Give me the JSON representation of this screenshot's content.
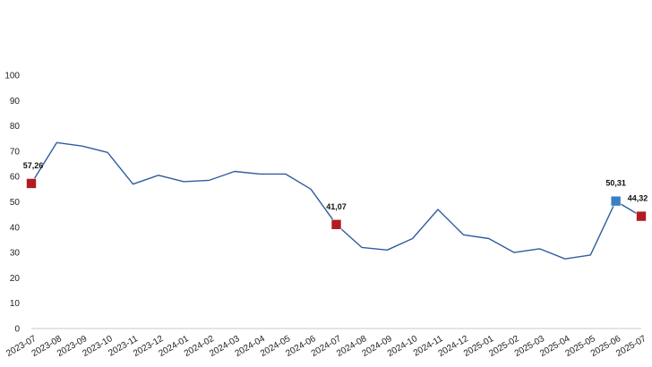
{
  "chart_data": {
    "type": "line",
    "title": "",
    "xlabel": "",
    "ylabel": "",
    "ylim": [
      0,
      100
    ],
    "yticks": [
      "0",
      "10",
      "20",
      "30",
      "40",
      "50",
      "60",
      "70",
      "80",
      "90",
      "100"
    ],
    "categories": [
      "2023-07",
      "2023-08",
      "2023-09",
      "2023-10",
      "2023-11",
      "2023-12",
      "2024-01",
      "2024-02",
      "2024-03",
      "2024-04",
      "2024-05",
      "2024-06",
      "2024-07",
      "2024-08",
      "2024-09",
      "2024-10",
      "2024-11",
      "2024-12",
      "2025-01",
      "2025-02",
      "2025-03",
      "2025-04",
      "2025-05",
      "2025-06",
      "2025-07"
    ],
    "series": [
      {
        "values": [
          57.26,
          73.4,
          72.0,
          69.5,
          57.0,
          60.5,
          58.0,
          58.5,
          62.0,
          61.0,
          61.0,
          55.0,
          41.07,
          32.0,
          31.0,
          35.5,
          47.0,
          37.0,
          35.5,
          30.0,
          31.5,
          27.5,
          29.0,
          50.31,
          44.32
        ],
        "color": "#2f5d9e"
      }
    ],
    "highlights": [
      {
        "index": 0,
        "label": "57,26",
        "color": "#b01c22"
      },
      {
        "index": 12,
        "label": "41,07",
        "color": "#b01c22"
      },
      {
        "index": 23,
        "label": "50,31",
        "color": "#3a7fc4"
      },
      {
        "index": 24,
        "label": "44,32",
        "color": "#b01c22"
      }
    ],
    "grid": false,
    "legend": "none"
  }
}
